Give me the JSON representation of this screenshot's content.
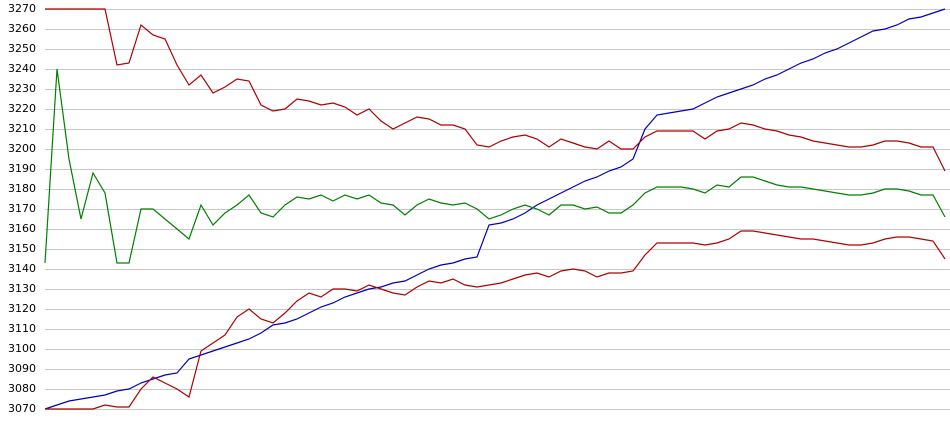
{
  "chart_data": {
    "type": "line",
    "ylim": [
      3070,
      3270
    ],
    "yticks": [
      3070,
      3080,
      3090,
      3100,
      3110,
      3120,
      3130,
      3140,
      3150,
      3160,
      3170,
      3180,
      3190,
      3200,
      3210,
      3220,
      3230,
      3240,
      3250,
      3260,
      3270
    ],
    "grid": true,
    "series": [
      {
        "color": "#0000c0",
        "values": [
          3070,
          3072,
          3074,
          3075,
          3076,
          3077,
          3079,
          3080,
          3083,
          3085,
          3087,
          3088,
          3095,
          3097,
          3099,
          3101,
          3103,
          3105,
          3108,
          3112,
          3113,
          3115,
          3118,
          3121,
          3123,
          3126,
          3128,
          3130,
          3131,
          3133,
          3134,
          3137,
          3140,
          3142,
          3143,
          3145,
          3146,
          3162,
          3163,
          3165,
          3168,
          3172,
          3175,
          3178,
          3181,
          3184,
          3186,
          3189,
          3191,
          3195,
          3210,
          3217,
          3218,
          3219,
          3220,
          3223,
          3226,
          3228,
          3230,
          3232,
          3235,
          3237,
          3240,
          3243,
          3245,
          3248,
          3250,
          3253,
          3256,
          3259,
          3260,
          3262,
          3265,
          3266,
          3268,
          3270
        ]
      },
      {
        "color": "#008000",
        "values": [
          3143,
          3240,
          3195,
          3165,
          3188,
          3178,
          3143,
          3143,
          3170,
          3170,
          3165,
          3160,
          3155,
          3172,
          3162,
          3168,
          3172,
          3177,
          3168,
          3166,
          3172,
          3176,
          3175,
          3177,
          3174,
          3177,
          3175,
          3177,
          3173,
          3172,
          3167,
          3172,
          3175,
          3173,
          3172,
          3173,
          3170,
          3165,
          3167,
          3170,
          3172,
          3170,
          3167,
          3172,
          3172,
          3170,
          3171,
          3168,
          3168,
          3172,
          3178,
          3181,
          3181,
          3181,
          3180,
          3178,
          3182,
          3181,
          3186,
          3186,
          3184,
          3182,
          3181,
          3181,
          3180,
          3179,
          3178,
          3177,
          3177,
          3178,
          3180,
          3180,
          3179,
          3177,
          3177,
          3166
        ]
      },
      {
        "color": "#b00000",
        "values": [
          3270,
          3270,
          3270,
          3270,
          3270,
          3270,
          3242,
          3243,
          3262,
          3257,
          3255,
          3242,
          3232,
          3237,
          3228,
          3231,
          3235,
          3234,
          3222,
          3219,
          3220,
          3225,
          3224,
          3222,
          3223,
          3221,
          3217,
          3220,
          3214,
          3210,
          3213,
          3216,
          3215,
          3212,
          3212,
          3210,
          3202,
          3201,
          3204,
          3206,
          3207,
          3205,
          3201,
          3205,
          3203,
          3201,
          3200,
          3204,
          3200,
          3200,
          3206,
          3209,
          3209,
          3209,
          3209,
          3205,
          3209,
          3210,
          3213,
          3212,
          3210,
          3209,
          3207,
          3206,
          3204,
          3203,
          3202,
          3201,
          3201,
          3202,
          3204,
          3204,
          3203,
          3201,
          3201,
          3189
        ]
      },
      {
        "color": "#b00000",
        "values": [
          3070,
          3070,
          3070,
          3070,
          3070,
          3072,
          3071,
          3071,
          3080,
          3086,
          3083,
          3080,
          3076,
          3099,
          3103,
          3107,
          3116,
          3120,
          3115,
          3113,
          3118,
          3124,
          3128,
          3126,
          3130,
          3130,
          3129,
          3132,
          3130,
          3128,
          3127,
          3131,
          3134,
          3133,
          3135,
          3132,
          3131,
          3132,
          3133,
          3135,
          3137,
          3138,
          3136,
          3139,
          3140,
          3139,
          3136,
          3138,
          3138,
          3139,
          3147,
          3153,
          3153,
          3153,
          3153,
          3152,
          3153,
          3155,
          3159,
          3159,
          3158,
          3157,
          3156,
          3155,
          3155,
          3154,
          3153,
          3152,
          3152,
          3153,
          3155,
          3156,
          3156,
          3155,
          3154,
          3145
        ]
      }
    ]
  }
}
